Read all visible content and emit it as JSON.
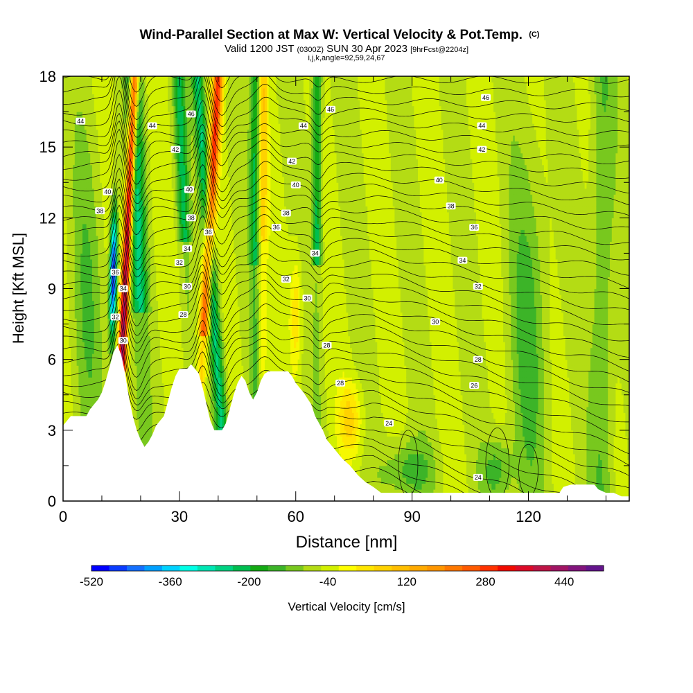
{
  "chart_data": {
    "type": "heatmap",
    "title": "Wind-Parallel Section at Max W: Vertical Velocity & Pot.Temp.",
    "title_mark": "(C)",
    "subtitle": {
      "valid": "Valid 1200 JST",
      "utc": "(0300Z)",
      "date": "SUN 30 Apr 2023",
      "fcst": "[9hrFcst@2204z]"
    },
    "subtitle2": "i,j,k,angle=92,59,24,67",
    "xlabel": "Distance [nm]",
    "ylabel": "Height [Kft MSL]",
    "xlim": [
      0,
      146
    ],
    "ylim": [
      0,
      18
    ],
    "x_ticks": [
      0,
      30,
      60,
      90,
      120
    ],
    "x_tick_labels": [
      "0",
      "30",
      "60",
      "90",
      "120"
    ],
    "y_ticks": [
      0,
      3,
      6,
      9,
      12,
      15,
      18
    ],
    "y_tick_labels": [
      "0",
      "3",
      "6",
      "9",
      "12",
      "15",
      "18"
    ],
    "colorbar": {
      "label": "Vertical Velocity [cm/s]",
      "min": -520,
      "max": 520,
      "step": 40,
      "tick_values": [
        -520,
        -360,
        -200,
        -40,
        120,
        280,
        440
      ],
      "tick_labels": [
        "-520",
        "-360",
        "-200",
        "-40",
        "120",
        "280",
        "440"
      ],
      "colors": [
        "#0000ff",
        "#0a3cff",
        "#1470ff",
        "#00a0ff",
        "#00d2ff",
        "#00ffe6",
        "#00e6b4",
        "#00d282",
        "#00be50",
        "#14aa14",
        "#3cb428",
        "#78c81e",
        "#b4dc14",
        "#d2f000",
        "#ffff00",
        "#ffe600",
        "#ffd200",
        "#ffbe00",
        "#ffaa00",
        "#ff9600",
        "#ff7800",
        "#ff5a00",
        "#ff3200",
        "#f00a00",
        "#dc0a28",
        "#be1446",
        "#a01464",
        "#82147d",
        "#64148c"
      ]
    },
    "contour_field": "Potential Temperature (C)",
    "contour_labels": [
      {
        "value": "44",
        "x": 4.5,
        "y": 16.1
      },
      {
        "value": "44",
        "x": 23,
        "y": 15.9
      },
      {
        "value": "46",
        "x": 33,
        "y": 16.4
      },
      {
        "value": "46",
        "x": 69,
        "y": 16.6
      },
      {
        "value": "44",
        "x": 62,
        "y": 15.9
      },
      {
        "value": "46",
        "x": 109,
        "y": 17.1
      },
      {
        "value": "44",
        "x": 108,
        "y": 15.9
      },
      {
        "value": "42",
        "x": 29,
        "y": 14.9
      },
      {
        "value": "42",
        "x": 59,
        "y": 14.4
      },
      {
        "value": "42",
        "x": 108,
        "y": 14.9
      },
      {
        "value": "40",
        "x": 11.5,
        "y": 13.1
      },
      {
        "value": "40",
        "x": 32.5,
        "y": 13.2
      },
      {
        "value": "40",
        "x": 60,
        "y": 13.4
      },
      {
        "value": "40",
        "x": 97,
        "y": 13.6
      },
      {
        "value": "38",
        "x": 9.5,
        "y": 12.3
      },
      {
        "value": "38",
        "x": 33,
        "y": 12.0
      },
      {
        "value": "38",
        "x": 57.5,
        "y": 12.2
      },
      {
        "value": "38",
        "x": 100,
        "y": 12.5
      },
      {
        "value": "36",
        "x": 37.5,
        "y": 11.4
      },
      {
        "value": "36",
        "x": 55,
        "y": 11.6
      },
      {
        "value": "36",
        "x": 106,
        "y": 11.6
      },
      {
        "value": "34",
        "x": 32,
        "y": 10.7
      },
      {
        "value": "34",
        "x": 65,
        "y": 10.5
      },
      {
        "value": "34",
        "x": 103,
        "y": 10.2
      },
      {
        "value": "34",
        "x": 15.5,
        "y": 9.0
      },
      {
        "value": "32",
        "x": 30,
        "y": 10.1
      },
      {
        "value": "32",
        "x": 57.5,
        "y": 9.4
      },
      {
        "value": "32",
        "x": 107,
        "y": 9.1
      },
      {
        "value": "32",
        "x": 13.5,
        "y": 7.8
      },
      {
        "value": "30",
        "x": 32,
        "y": 9.1
      },
      {
        "value": "30",
        "x": 63,
        "y": 8.6
      },
      {
        "value": "30",
        "x": 96,
        "y": 7.6
      },
      {
        "value": "30",
        "x": 15.5,
        "y": 6.8
      },
      {
        "value": "36",
        "x": 13.5,
        "y": 9.7
      },
      {
        "value": "28",
        "x": 31,
        "y": 7.9
      },
      {
        "value": "28",
        "x": 68,
        "y": 6.6
      },
      {
        "value": "28",
        "x": 71.5,
        "y": 5.0
      },
      {
        "value": "28",
        "x": 107,
        "y": 6.0
      },
      {
        "value": "26",
        "x": 106,
        "y": 4.9
      },
      {
        "value": "24",
        "x": 84,
        "y": 3.3
      },
      {
        "value": "24",
        "x": 107,
        "y": 1.0
      }
    ]
  }
}
